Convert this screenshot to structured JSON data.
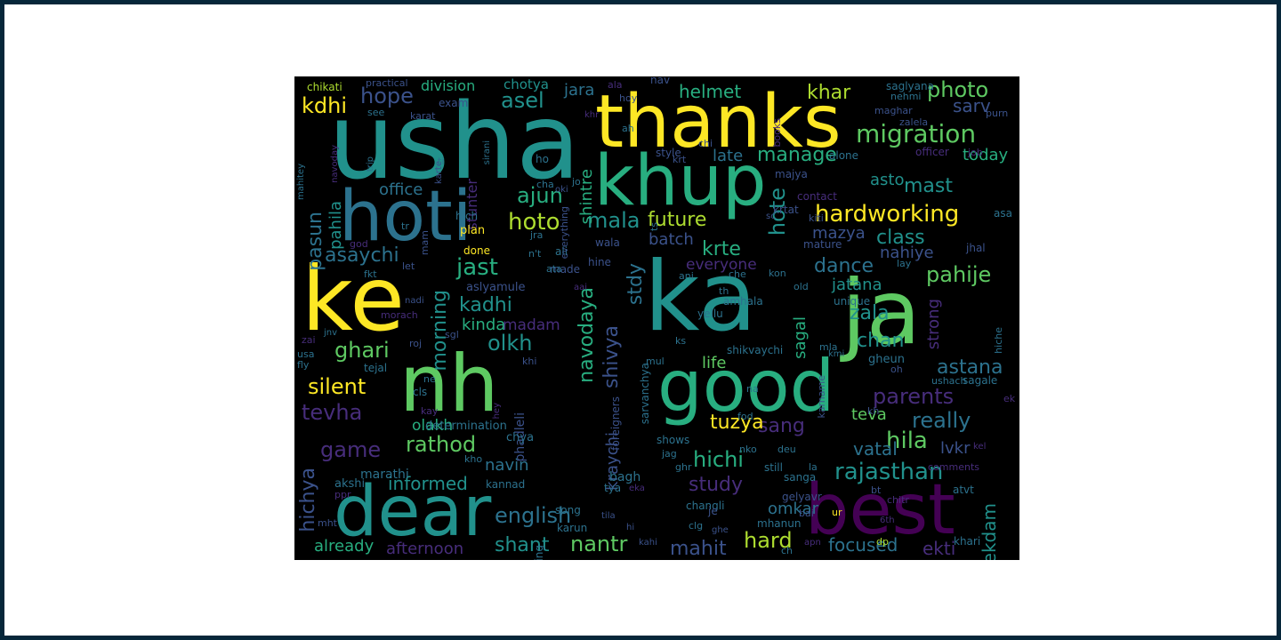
{
  "wordcloud": {
    "palette": [
      "#440154",
      "#472d7b",
      "#3b528b",
      "#2c728e",
      "#21918c",
      "#28ae80",
      "#5ec962",
      "#addc30",
      "#fde725"
    ],
    "words": [
      {
        "text": "usha",
        "color": "#21918c"
      },
      {
        "text": "thanks",
        "color": "#fde725"
      },
      {
        "text": "khup",
        "color": "#28ae80"
      },
      {
        "text": "hoti",
        "color": "#2c728e"
      },
      {
        "text": "ke",
        "color": "#fde725"
      },
      {
        "text": "ka",
        "color": "#21918c"
      },
      {
        "text": "ja",
        "color": "#5ec962"
      },
      {
        "text": "nh",
        "color": "#5ec962"
      },
      {
        "text": "good",
        "color": "#28ae80"
      },
      {
        "text": "dear",
        "color": "#21918c"
      },
      {
        "text": "best",
        "color": "#440154"
      },
      {
        "text": "migration",
        "color": "#5ec962"
      },
      {
        "text": "hardworking",
        "color": "#fde725"
      },
      {
        "text": "photo",
        "color": "#5ec962"
      },
      {
        "text": "helmet",
        "color": "#28ae80"
      },
      {
        "text": "khar",
        "color": "#addc30"
      },
      {
        "text": "sarv",
        "color": "#3b528b"
      },
      {
        "text": "manage",
        "color": "#28ae80"
      },
      {
        "text": "today",
        "color": "#28ae80"
      },
      {
        "text": "asel",
        "color": "#21918c"
      },
      {
        "text": "jara",
        "color": "#2c728e"
      },
      {
        "text": "division",
        "color": "#28ae80"
      },
      {
        "text": "hope",
        "color": "#3b528b"
      },
      {
        "text": "kdhi",
        "color": "#fde725"
      },
      {
        "text": "chotya",
        "color": "#21918c"
      },
      {
        "text": "office",
        "color": "#2c728e"
      },
      {
        "text": "ajun",
        "color": "#28ae80"
      },
      {
        "text": "hoto",
        "color": "#addc30"
      },
      {
        "text": "mala",
        "color": "#21918c"
      },
      {
        "text": "future",
        "color": "#addc30"
      },
      {
        "text": "late",
        "color": "#2c728e"
      },
      {
        "text": "shintre",
        "color": "#28ae80"
      },
      {
        "text": "mast",
        "color": "#21918c"
      },
      {
        "text": "asto",
        "color": "#21918c"
      },
      {
        "text": "class",
        "color": "#21918c"
      },
      {
        "text": "mazya",
        "color": "#3b528b"
      },
      {
        "text": "pasun",
        "color": "#2c728e"
      },
      {
        "text": "pahila",
        "color": "#21918c"
      },
      {
        "text": "asaychi",
        "color": "#2c728e"
      },
      {
        "text": "jast",
        "color": "#28ae80"
      },
      {
        "text": "krte",
        "color": "#28ae80"
      },
      {
        "text": "batch",
        "color": "#3b528b"
      },
      {
        "text": "hote",
        "color": "#21918c"
      },
      {
        "text": "dance",
        "color": "#2c728e"
      },
      {
        "text": "pahije",
        "color": "#5ec962"
      },
      {
        "text": "nahiye",
        "color": "#3b528b"
      },
      {
        "text": "everyone",
        "color": "#472d7b"
      },
      {
        "text": "morning",
        "color": "#21918c"
      },
      {
        "text": "kadhi",
        "color": "#21918c"
      },
      {
        "text": "olkh",
        "color": "#21918c"
      },
      {
        "text": "navodaya",
        "color": "#28ae80"
      },
      {
        "text": "stdy",
        "color": "#2c728e"
      },
      {
        "text": "jatana",
        "color": "#21918c"
      },
      {
        "text": "zala",
        "color": "#21918c"
      },
      {
        "text": "strong",
        "color": "#472d7b"
      },
      {
        "text": "chan",
        "color": "#21918c"
      },
      {
        "text": "ghari",
        "color": "#5ec962"
      },
      {
        "text": "kinda",
        "color": "#28ae80"
      },
      {
        "text": "madam",
        "color": "#472d7b"
      },
      {
        "text": "shivya",
        "color": "#3b528b"
      },
      {
        "text": "sagal",
        "color": "#28ae80"
      },
      {
        "text": "astana",
        "color": "#2c728e"
      },
      {
        "text": "silent",
        "color": "#fde725"
      },
      {
        "text": "parents",
        "color": "#472d7b"
      },
      {
        "text": "life",
        "color": "#5ec962"
      },
      {
        "text": "tevha",
        "color": "#472d7b"
      },
      {
        "text": "really",
        "color": "#2c728e"
      },
      {
        "text": "olakh",
        "color": "#28ae80"
      },
      {
        "text": "sang",
        "color": "#472d7b"
      },
      {
        "text": "tuzya",
        "color": "#fde725"
      },
      {
        "text": "teva",
        "color": "#5ec962"
      },
      {
        "text": "hila",
        "color": "#5ec962"
      },
      {
        "text": "game",
        "color": "#472d7b"
      },
      {
        "text": "rathod",
        "color": "#5ec962"
      },
      {
        "text": "hichi",
        "color": "#28ae80"
      },
      {
        "text": "vatal",
        "color": "#2c728e"
      },
      {
        "text": "lvkr",
        "color": "#3b528b"
      },
      {
        "text": "rajasthan",
        "color": "#21918c"
      },
      {
        "text": "ekdam",
        "color": "#21918c"
      },
      {
        "text": "kraychi",
        "color": "#3b528b"
      },
      {
        "text": "navin",
        "color": "#2c728e"
      },
      {
        "text": "study",
        "color": "#472d7b"
      },
      {
        "text": "hichya",
        "color": "#3b528b"
      },
      {
        "text": "informed",
        "color": "#21918c"
      },
      {
        "text": "english",
        "color": "#2c728e"
      },
      {
        "text": "omkar",
        "color": "#2c728e"
      },
      {
        "text": "hard",
        "color": "#addc30"
      },
      {
        "text": "nantr",
        "color": "#5ec962"
      },
      {
        "text": "shant",
        "color": "#21918c"
      },
      {
        "text": "mahit",
        "color": "#3b528b"
      },
      {
        "text": "focused",
        "color": "#2c728e"
      },
      {
        "text": "ekti",
        "color": "#472d7b"
      },
      {
        "text": "already",
        "color": "#28ae80"
      },
      {
        "text": "afternoon",
        "color": "#472d7b"
      },
      {
        "text": "chikati",
        "color": "#addc30"
      },
      {
        "text": "practical",
        "color": "#3b528b"
      },
      {
        "text": "exam",
        "color": "#3b528b"
      },
      {
        "text": "karat",
        "color": "#3b528b"
      },
      {
        "text": "see",
        "color": "#2c728e"
      },
      {
        "text": "navoday",
        "color": "#472d7b"
      },
      {
        "text": "mahitey",
        "color": "#2c728e"
      },
      {
        "text": "trip",
        "color": "#2c728e"
      },
      {
        "text": "sirani",
        "color": "#2c728e"
      },
      {
        "text": "stunter",
        "color": "#472d7b"
      },
      {
        "text": "saglyana",
        "color": "#2c728e"
      },
      {
        "text": "nehmi",
        "color": "#2c728e"
      },
      {
        "text": "maghar",
        "color": "#3b528b"
      },
      {
        "text": "zalela",
        "color": "#3b528b"
      },
      {
        "text": "purn",
        "color": "#3b528b"
      },
      {
        "text": "books",
        "color": "#472d7b"
      },
      {
        "text": "officer",
        "color": "#472d7b"
      },
      {
        "text": "alone",
        "color": "#2c728e"
      },
      {
        "text": "style",
        "color": "#3b528b"
      },
      {
        "text": "job",
        "color": "#472d7b"
      },
      {
        "text": "krtat",
        "color": "#3b528b"
      },
      {
        "text": "kiti",
        "color": "#3b528b"
      },
      {
        "text": "contact",
        "color": "#472d7b"
      },
      {
        "text": "majya",
        "color": "#3b528b"
      },
      {
        "text": "mature",
        "color": "#3b528b"
      },
      {
        "text": "jhal",
        "color": "#3b528b"
      },
      {
        "text": "hich",
        "color": "#2c728e"
      },
      {
        "text": "plan",
        "color": "#fde725"
      },
      {
        "text": "wala",
        "color": "#3b528b"
      },
      {
        "text": "done",
        "color": "#fde725"
      },
      {
        "text": "hine",
        "color": "#3b528b"
      },
      {
        "text": "made",
        "color": "#3b528b"
      },
      {
        "text": "aslyamule",
        "color": "#3b528b"
      },
      {
        "text": "sarvanchya",
        "color": "#2c728e"
      },
      {
        "text": "amhala",
        "color": "#2c728e"
      },
      {
        "text": "yellu",
        "color": "#2c728e"
      },
      {
        "text": "unique",
        "color": "#2c728e"
      },
      {
        "text": "shikvaychi",
        "color": "#2c728e"
      },
      {
        "text": "karname",
        "color": "#3b528b"
      },
      {
        "text": "gheun",
        "color": "#2c728e"
      },
      {
        "text": "phadleli",
        "color": "#3b528b"
      },
      {
        "text": "foreigners",
        "color": "#3b528b"
      },
      {
        "text": "ushach",
        "color": "#2c728e"
      },
      {
        "text": "sagale",
        "color": "#2c728e"
      },
      {
        "text": "determination",
        "color": "#2c728e"
      },
      {
        "text": "chya",
        "color": "#2c728e"
      },
      {
        "text": "shows",
        "color": "#2c728e"
      },
      {
        "text": "marathi",
        "color": "#2c728e"
      },
      {
        "text": "bagh",
        "color": "#2c728e"
      },
      {
        "text": "akshi",
        "color": "#2c728e"
      },
      {
        "text": "kannad",
        "color": "#2c728e"
      },
      {
        "text": "song",
        "color": "#2c728e"
      },
      {
        "text": "changli",
        "color": "#2c728e"
      },
      {
        "text": "sanga",
        "color": "#2c728e"
      },
      {
        "text": "gelyavr",
        "color": "#3b528b"
      },
      {
        "text": "mhanun",
        "color": "#2c728e"
      },
      {
        "text": "karun",
        "color": "#2c728e"
      },
      {
        "text": "daring",
        "color": "#2c728e"
      },
      {
        "text": "comments",
        "color": "#472d7b"
      },
      {
        "text": "chitr",
        "color": "#472d7b"
      },
      {
        "text": "atvt",
        "color": "#2c728e"
      },
      {
        "text": "khari",
        "color": "#2c728e"
      },
      {
        "text": "still",
        "color": "#2c728e"
      },
      {
        "text": "jnv",
        "color": "#2c728e"
      },
      {
        "text": "usa",
        "color": "#2c728e"
      },
      {
        "text": "fly",
        "color": "#2c728e"
      },
      {
        "text": "tejal",
        "color": "#2c728e"
      },
      {
        "text": "fkt",
        "color": "#2c728e"
      },
      {
        "text": "let",
        "color": "#3b528b"
      },
      {
        "text": "nadi",
        "color": "#3b528b"
      },
      {
        "text": "morach",
        "color": "#472d7b"
      },
      {
        "text": "roj",
        "color": "#3b528b"
      },
      {
        "text": "sgl",
        "color": "#3b528b"
      },
      {
        "text": "khi",
        "color": "#3b528b"
      },
      {
        "text": "cls",
        "color": "#2c728e"
      },
      {
        "text": "ne",
        "color": "#2c728e"
      },
      {
        "text": "kay",
        "color": "#472d7b"
      },
      {
        "text": "hey",
        "color": "#472d7b"
      },
      {
        "text": "tila",
        "color": "#3b528b"
      },
      {
        "text": "kahi",
        "color": "#3b528b"
      },
      {
        "text": "clg",
        "color": "#2c728e"
      },
      {
        "text": "ch",
        "color": "#2c728e"
      },
      {
        "text": "apn",
        "color": "#472d7b"
      },
      {
        "text": "bai",
        "color": "#3b528b"
      },
      {
        "text": "ur",
        "color": "#fde725"
      },
      {
        "text": "dp",
        "color": "#addc30"
      },
      {
        "text": "6th",
        "color": "#472d7b"
      },
      {
        "text": "bt",
        "color": "#3b528b"
      },
      {
        "text": "kh",
        "color": "#3b528b"
      },
      {
        "text": "oh",
        "color": "#3b528b"
      },
      {
        "text": "ghr",
        "color": "#2c728e"
      },
      {
        "text": "jag",
        "color": "#2c728e"
      },
      {
        "text": "deu",
        "color": "#2c728e"
      },
      {
        "text": "nko",
        "color": "#2c728e"
      },
      {
        "text": "fod",
        "color": "#2c728e"
      },
      {
        "text": "la",
        "color": "#2c728e"
      },
      {
        "text": "na",
        "color": "#2c728e"
      },
      {
        "text": "th",
        "color": "#2c728e"
      },
      {
        "text": "ks",
        "color": "#2c728e"
      },
      {
        "text": "mul",
        "color": "#2c728e"
      },
      {
        "text": "kon",
        "color": "#2c728e"
      },
      {
        "text": "old",
        "color": "#2c728e"
      },
      {
        "text": "che",
        "color": "#2c728e"
      },
      {
        "text": "ani",
        "color": "#2c728e"
      },
      {
        "text": "lay",
        "color": "#2c728e"
      },
      {
        "text": "mla",
        "color": "#2c728e"
      },
      {
        "text": "ali",
        "color": "#2c728e"
      },
      {
        "text": "ata",
        "color": "#2c728e"
      },
      {
        "text": "n't",
        "color": "#2c728e"
      },
      {
        "text": "jra",
        "color": "#2c728e"
      },
      {
        "text": "god",
        "color": "#472d7b"
      },
      {
        "text": "tr",
        "color": "#2c728e"
      },
      {
        "text": "mam",
        "color": "#3b528b"
      },
      {
        "text": "ts",
        "color": "#2c728e"
      },
      {
        "text": "jo",
        "color": "#2c728e"
      },
      {
        "text": "ho",
        "color": "#2c728e"
      },
      {
        "text": "cha",
        "color": "#2c728e"
      },
      {
        "text": "ah",
        "color": "#2c728e"
      },
      {
        "text": "nav",
        "color": "#3b528b"
      },
      {
        "text": "hoy",
        "color": "#3b528b"
      },
      {
        "text": "ala",
        "color": "#472d7b"
      },
      {
        "text": "krt",
        "color": "#3b528b"
      },
      {
        "text": "chi",
        "color": "#3b528b"
      },
      {
        "text": "asa",
        "color": "#2c728e"
      },
      {
        "text": "ek",
        "color": "#472d7b"
      },
      {
        "text": "hiche",
        "color": "#2c728e"
      },
      {
        "text": "zai",
        "color": "#472d7b"
      },
      {
        "text": "ppr",
        "color": "#472d7b"
      },
      {
        "text": "mht",
        "color": "#3b528b"
      },
      {
        "text": "kho",
        "color": "#2c728e"
      },
      {
        "text": "tya",
        "color": "#2c728e"
      },
      {
        "text": "eka",
        "color": "#472d7b"
      },
      {
        "text": "hi",
        "color": "#3b528b"
      },
      {
        "text": "everything",
        "color": "#3b528b"
      },
      {
        "text": "sc",
        "color": "#3b528b"
      },
      {
        "text": "ghe",
        "color": "#3b528b"
      },
      {
        "text": "khr",
        "color": "#472d7b"
      },
      {
        "text": "kel",
        "color": "#472d7b"
      },
      {
        "text": "kmi",
        "color": "#2c728e"
      },
      {
        "text": "ti",
        "color": "#2c728e"
      },
      {
        "text": "karte",
        "color": "#3b528b"
      },
      {
        "text": "aai",
        "color": "#472d7b"
      },
      {
        "text": "oki",
        "color": "#3b528b"
      },
      {
        "text": "je",
        "color": "#3b528b"
      }
    ]
  }
}
